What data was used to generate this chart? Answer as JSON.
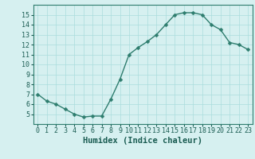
{
  "x": [
    0,
    1,
    2,
    3,
    4,
    5,
    6,
    7,
    8,
    9,
    10,
    11,
    12,
    13,
    14,
    15,
    16,
    17,
    18,
    19,
    20,
    21,
    22,
    23
  ],
  "y": [
    7.0,
    6.3,
    6.0,
    5.5,
    5.0,
    4.7,
    4.8,
    4.8,
    6.5,
    8.5,
    11.0,
    11.7,
    12.3,
    13.0,
    14.0,
    15.0,
    15.2,
    15.2,
    15.0,
    14.0,
    13.5,
    12.2,
    12.0,
    11.5
  ],
  "line_color": "#2e7d6e",
  "marker_color": "#2e7d6e",
  "bg_color": "#d6f0f0",
  "grid_color": "#aadddd",
  "xlabel": "Humidex (Indice chaleur)",
  "ylim": [
    4,
    16
  ],
  "xlim": [
    -0.5,
    23.5
  ],
  "yticks": [
    5,
    6,
    7,
    8,
    9,
    10,
    11,
    12,
    13,
    14,
    15
  ],
  "xticks": [
    0,
    1,
    2,
    3,
    4,
    5,
    6,
    7,
    8,
    9,
    10,
    11,
    12,
    13,
    14,
    15,
    16,
    17,
    18,
    19,
    20,
    21,
    22,
    23
  ],
  "xlabel_fontsize": 7.5,
  "tick_fontsize": 6,
  "linewidth": 1.0,
  "markersize": 2.5
}
